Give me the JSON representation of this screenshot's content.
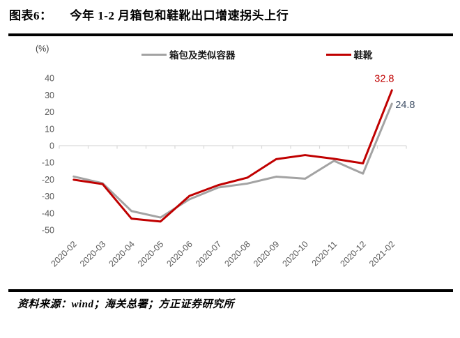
{
  "header": {
    "figure_label": "图表6：",
    "title": "今年 1-2 月箱包和鞋靴出口增速拐头上行"
  },
  "chart": {
    "unit_label": "(%)"
  },
  "chart_data": {
    "type": "line",
    "title": "今年 1-2 月箱包和鞋靴出口增速拐头上行",
    "categories": [
      "2020-02",
      "2020-03",
      "2020-04",
      "2020-05",
      "2020-06",
      "2020-07",
      "2020-08",
      "2020-09",
      "2020-10",
      "2020-11",
      "2020-12",
      "2021-02"
    ],
    "series": [
      {
        "name": "箱包及类似容器",
        "color": "#a3a3a3",
        "values": [
          -18.3,
          -22.3,
          -38.8,
          -42.6,
          -31.8,
          -24.8,
          -22.5,
          -18.4,
          -19.6,
          -9.0,
          -16.6,
          24.8
        ]
      },
      {
        "name": "鞋靴",
        "color": "#c00000",
        "values": [
          -20.2,
          -22.8,
          -43.3,
          -45.0,
          -29.8,
          -23.4,
          -19.0,
          -8.0,
          -5.6,
          -7.8,
          -10.5,
          32.8
        ]
      }
    ],
    "ylabel": "(%)",
    "ylim": [
      -50,
      40
    ],
    "yticks": [
      40,
      30,
      20,
      10,
      0,
      -10,
      -20,
      -30,
      -40,
      -50
    ],
    "grid": "zero-axis-only",
    "legend_position": "top",
    "axis_color": "#d9d9d9",
    "tick_label_color": "#595959",
    "end_labels": [
      {
        "series": "鞋靴",
        "text": "32.8",
        "color": "#c00000"
      },
      {
        "series": "箱包及类似容器",
        "text": "24.8",
        "color": "#44546a"
      }
    ]
  },
  "footer": {
    "source": "资料来源：wind；海关总署；方正证券研究所"
  }
}
